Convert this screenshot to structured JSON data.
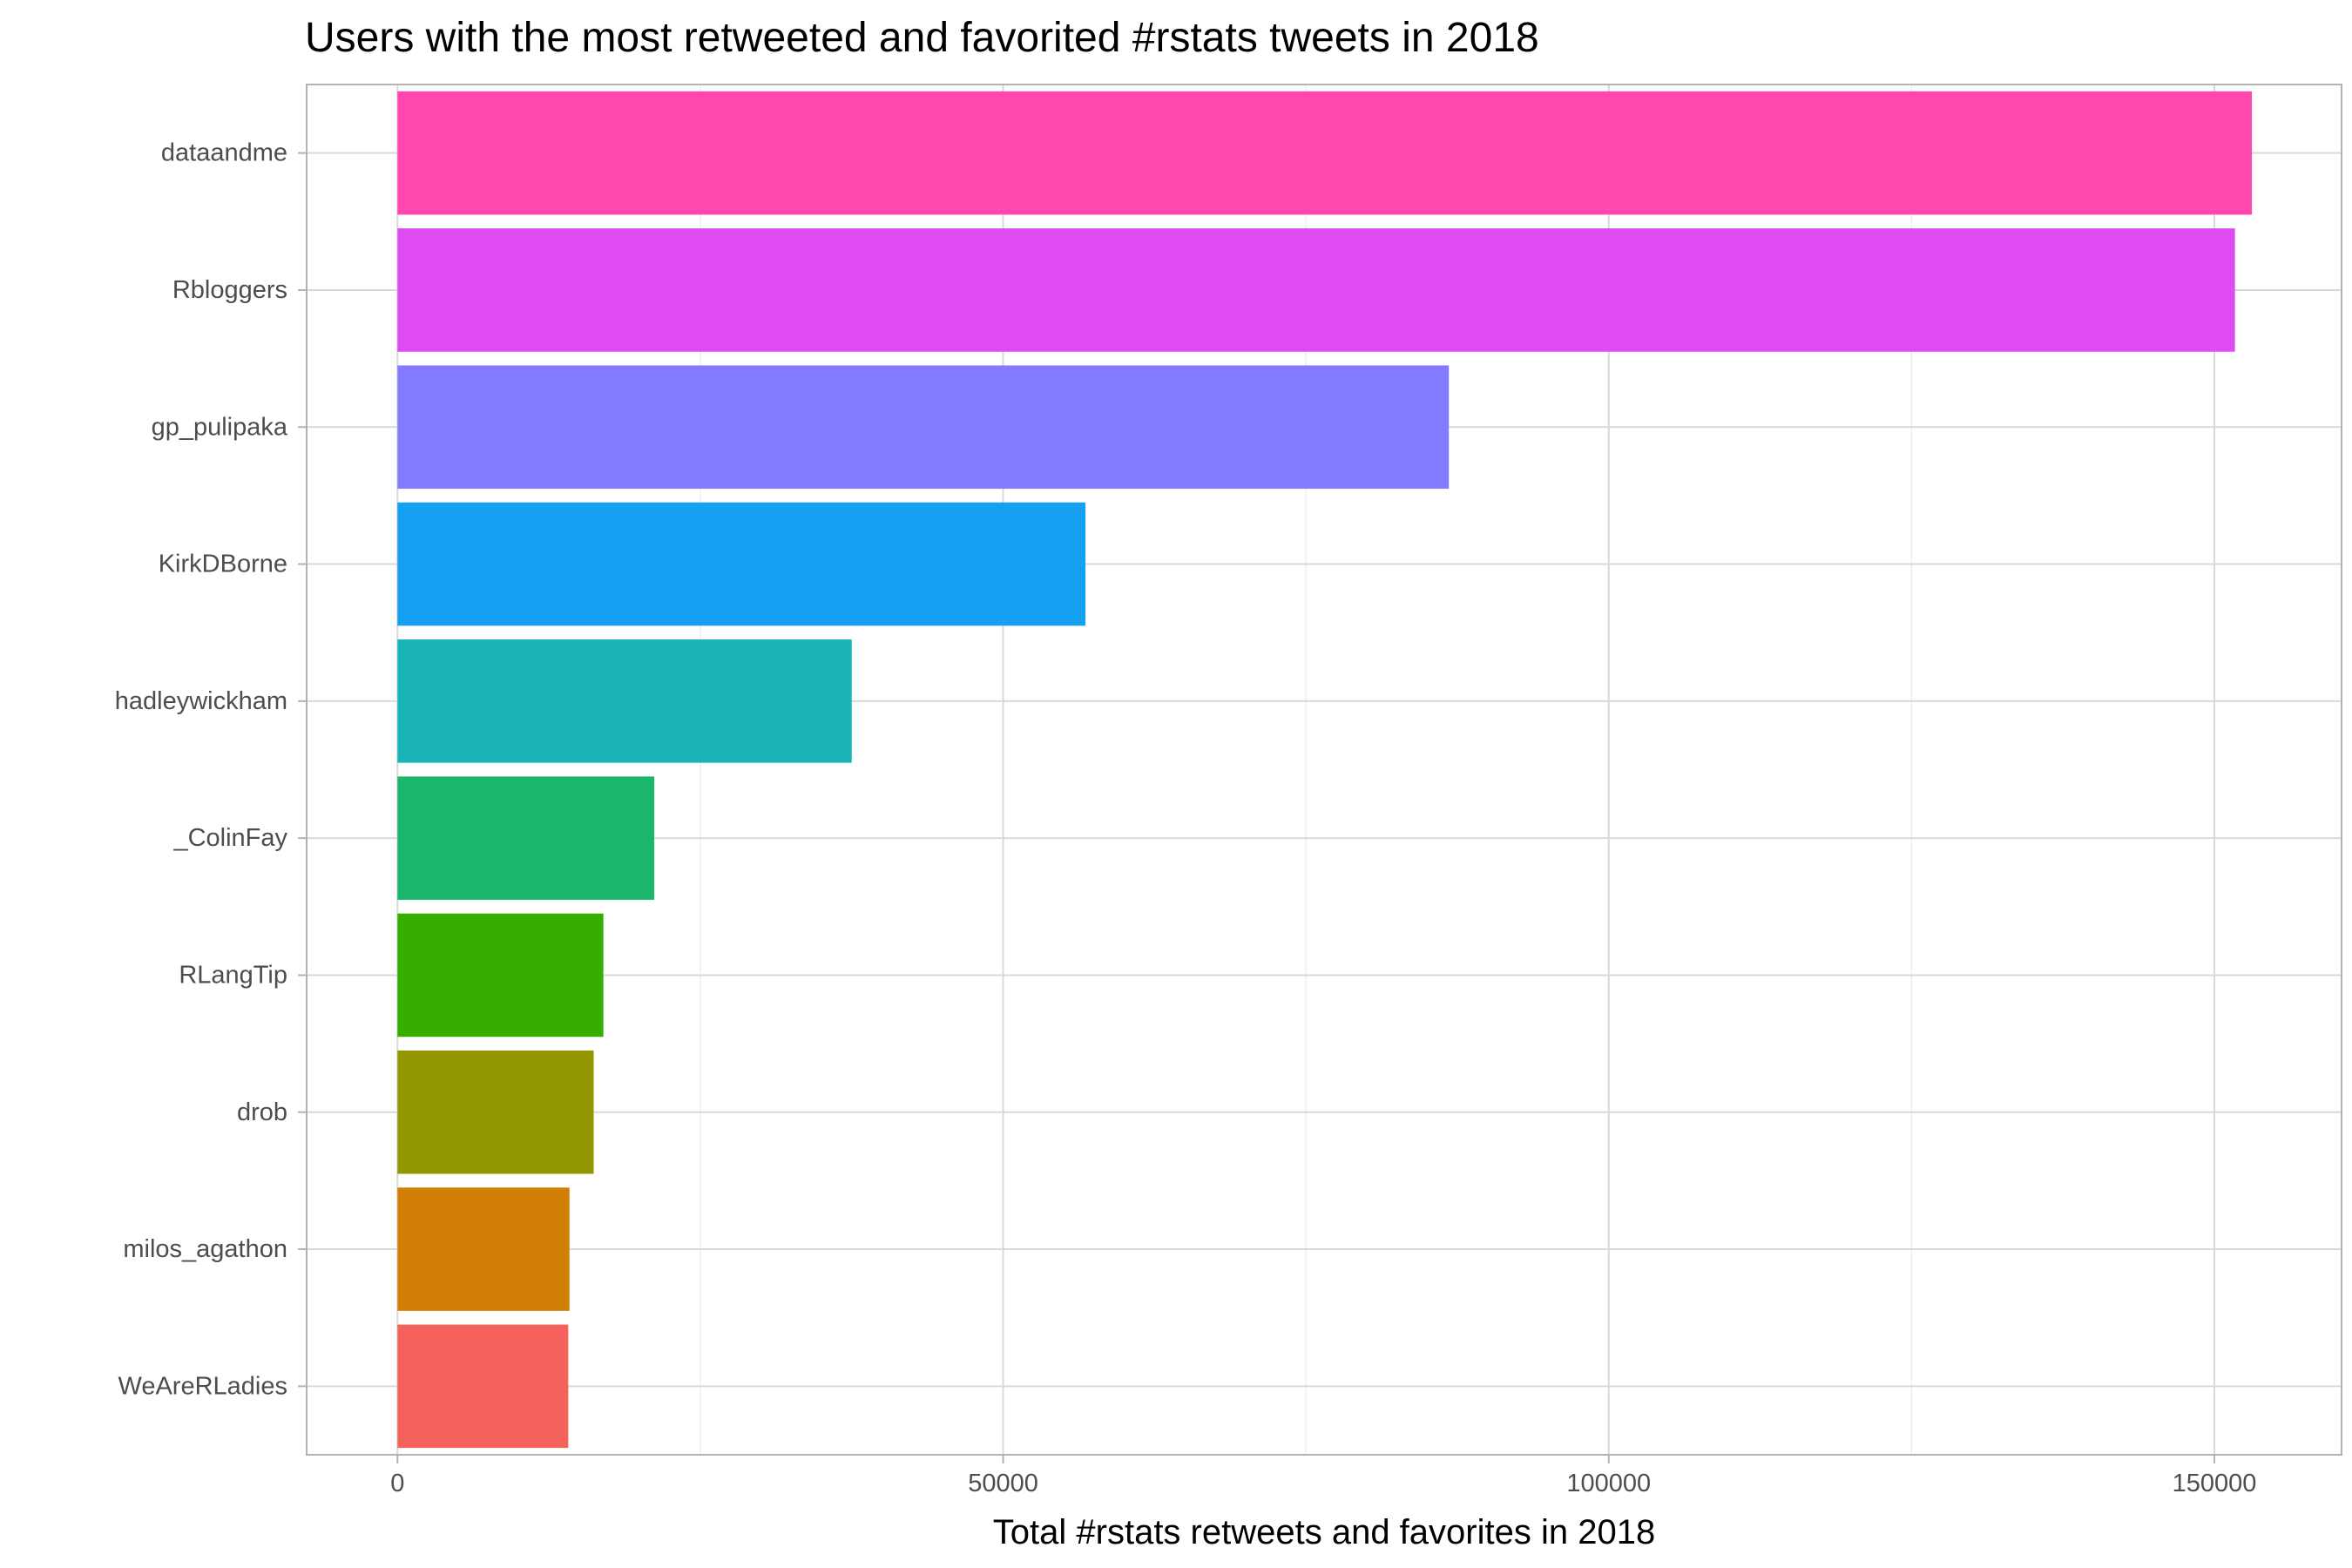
{
  "chart_data": {
    "type": "bar",
    "orientation": "horizontal",
    "title": "Users with the most retweeted and favorited #rstats tweets in 2018",
    "xlabel": "Total #rstats retweets and favorites in 2018",
    "ylabel": "",
    "xlim": [
      -7500,
      160500
    ],
    "xticks": [
      0,
      50000,
      100000,
      150000
    ],
    "xtick_labels": [
      "0",
      "50000",
      "100000",
      "150000"
    ],
    "grid": true,
    "legend": "none",
    "categories": [
      "dataandme",
      "Rbloggers",
      "gp_pulipaka",
      "KirkDBorne",
      "hadleywickham",
      "_ColinFay",
      "RLangTip",
      "drob",
      "milos_agathon",
      "WeAreRLadies"
    ],
    "values": [
      153100,
      151700,
      86800,
      56800,
      37500,
      21200,
      17000,
      16200,
      14200,
      14100
    ],
    "colors": [
      "#FF47AF",
      "#DE4BF2",
      "#837BFF",
      "#16A0F1",
      "#19B3B8",
      "#1AB76C",
      "#35AE00",
      "#939800",
      "#D17E05",
      "#F5625B"
    ]
  }
}
